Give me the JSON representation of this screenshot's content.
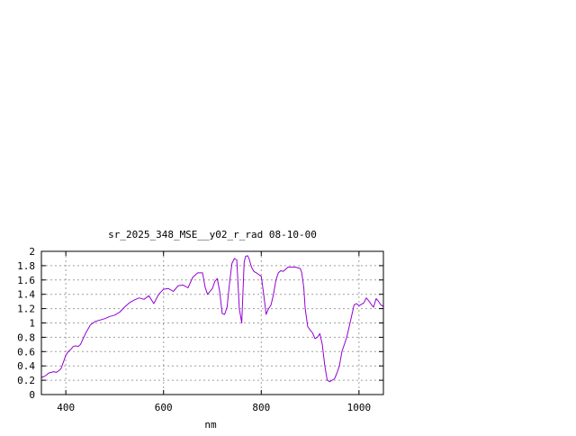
{
  "chart_data": {
    "type": "line",
    "title": "sr_2025_348_MSE__y02_r_rad 08-10-00",
    "xlabel": "nm",
    "ylabel": "",
    "xlim": [
      350,
      1050
    ],
    "ylim": [
      0,
      2
    ],
    "xticks": [
      400,
      600,
      800,
      1000
    ],
    "xtick_labels": [
      "400",
      "600",
      "800",
      "1000"
    ],
    "yticks": [
      0,
      0.2,
      0.4,
      0.6,
      0.8,
      1,
      1.2,
      1.4,
      1.6,
      1.8,
      2
    ],
    "ytick_labels": [
      "0",
      "0.2",
      "0.4",
      "0.6",
      "0.8",
      "1",
      "1.2",
      "1.4",
      "1.6",
      "1.8",
      "2"
    ],
    "grid": true,
    "line_color": "#9400d3",
    "series": [
      {
        "x": [
          350,
          355,
          360,
          365,
          370,
          375,
          380,
          385,
          390,
          395,
          400,
          405,
          410,
          415,
          420,
          425,
          430,
          440,
          450,
          460,
          470,
          480,
          490,
          500,
          510,
          520,
          530,
          540,
          550,
          560,
          570,
          580,
          590,
          600,
          610,
          620,
          630,
          640,
          650,
          660,
          670,
          680,
          685,
          690,
          700,
          705,
          710,
          715,
          720,
          725,
          730,
          735,
          740,
          745,
          750,
          755,
          760,
          765,
          768,
          772,
          775,
          780,
          785,
          790,
          800,
          805,
          810,
          815,
          820,
          825,
          830,
          835,
          840,
          845,
          850,
          855,
          860,
          870,
          880,
          883,
          887,
          890,
          895,
          900,
          905,
          910,
          915,
          920,
          925,
          930,
          935,
          940,
          945,
          950,
          955,
          960,
          965,
          970,
          975,
          980,
          985,
          990,
          995,
          1000,
          1005,
          1010,
          1015,
          1020,
          1025,
          1030,
          1035,
          1040,
          1045,
          1050
        ],
        "y": [
          0.24,
          0.25,
          0.27,
          0.3,
          0.31,
          0.32,
          0.31,
          0.33,
          0.36,
          0.45,
          0.55,
          0.6,
          0.63,
          0.67,
          0.68,
          0.67,
          0.7,
          0.85,
          0.97,
          1.02,
          1.04,
          1.06,
          1.09,
          1.11,
          1.15,
          1.22,
          1.28,
          1.32,
          1.35,
          1.33,
          1.38,
          1.27,
          1.4,
          1.47,
          1.48,
          1.44,
          1.52,
          1.53,
          1.49,
          1.64,
          1.7,
          1.7,
          1.5,
          1.4,
          1.48,
          1.58,
          1.62,
          1.44,
          1.13,
          1.12,
          1.22,
          1.55,
          1.83,
          1.9,
          1.88,
          1.2,
          1.0,
          1.85,
          1.93,
          1.94,
          1.9,
          1.78,
          1.72,
          1.7,
          1.65,
          1.4,
          1.12,
          1.2,
          1.25,
          1.4,
          1.6,
          1.7,
          1.73,
          1.72,
          1.75,
          1.78,
          1.78,
          1.78,
          1.76,
          1.7,
          1.5,
          1.2,
          0.95,
          0.9,
          0.86,
          0.78,
          0.8,
          0.85,
          0.7,
          0.4,
          0.2,
          0.18,
          0.2,
          0.22,
          0.3,
          0.4,
          0.6,
          0.7,
          0.8,
          0.95,
          1.1,
          1.25,
          1.27,
          1.24,
          1.26,
          1.28,
          1.35,
          1.31,
          1.26,
          1.22,
          1.34,
          1.3,
          1.25,
          1.23
        ]
      }
    ]
  }
}
